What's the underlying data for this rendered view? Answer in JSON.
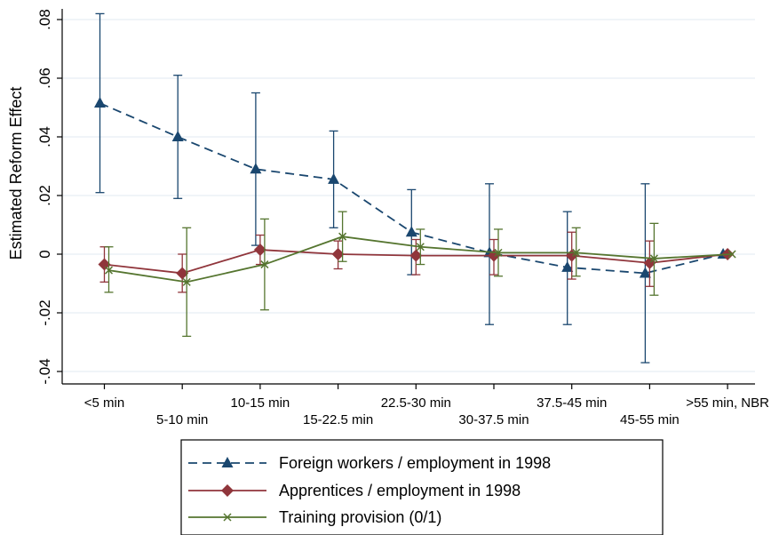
{
  "chart_data": {
    "type": "line",
    "title": "",
    "xlabel": "",
    "ylabel": "Estimated Reform Effect",
    "ylim": [
      -0.04,
      0.08
    ],
    "yticks": [
      -0.04,
      -0.02,
      0,
      0.02,
      0.04,
      0.06,
      0.08
    ],
    "ytick_labels": [
      "-.04",
      "-.02",
      "0",
      ".02",
      ".04",
      ".06",
      ".08"
    ],
    "grid": true,
    "legend_position": "bottom",
    "categories": [
      "<5 min",
      "5-10 min",
      "10-15 min",
      "15-22.5 min",
      "22.5-30 min",
      "30-37.5 min",
      "37.5-45 min",
      "45-55 min",
      ">55 min, NBR"
    ],
    "series": [
      {
        "name": "Foreign workers / employment in 1998",
        "color": "#1a476f",
        "line_style": "dashed",
        "marker": "triangle",
        "values": [
          0.0515,
          0.04,
          0.029,
          0.0255,
          0.0075,
          0.0005,
          -0.0045,
          -0.0065,
          0.0
        ],
        "ci_low": [
          0.021,
          0.019,
          0.003,
          0.009,
          -0.007,
          -0.024,
          -0.024,
          -0.037,
          null
        ],
        "ci_high": [
          0.082,
          0.061,
          0.055,
          0.042,
          0.022,
          0.024,
          0.0145,
          0.024,
          null
        ]
      },
      {
        "name": "Apprentices / employment in 1998",
        "color": "#90353b",
        "line_style": "solid",
        "marker": "diamond",
        "values": [
          -0.0035,
          -0.0065,
          0.0015,
          0.0,
          -0.0005,
          -0.0005,
          -0.0005,
          -0.003,
          0.0
        ],
        "ci_low": [
          -0.0095,
          -0.013,
          -0.0035,
          -0.005,
          -0.007,
          -0.007,
          -0.0085,
          -0.011,
          null
        ],
        "ci_high": [
          0.0025,
          0.0,
          0.0065,
          0.0045,
          0.005,
          0.005,
          0.0075,
          0.0045,
          null
        ]
      },
      {
        "name": "Training provision (0/1)",
        "color": "#55752f",
        "line_style": "solid",
        "marker": "x",
        "values": [
          -0.0055,
          -0.0095,
          -0.0035,
          0.006,
          0.0025,
          0.0005,
          0.0005,
          -0.0015,
          0.0
        ],
        "ci_low": [
          -0.013,
          -0.028,
          -0.019,
          -0.0025,
          -0.0035,
          -0.0075,
          -0.0075,
          -0.014,
          null
        ],
        "ci_high": [
          0.0025,
          0.009,
          0.012,
          0.0145,
          0.0085,
          0.0085,
          0.009,
          0.0105,
          null
        ]
      }
    ]
  }
}
